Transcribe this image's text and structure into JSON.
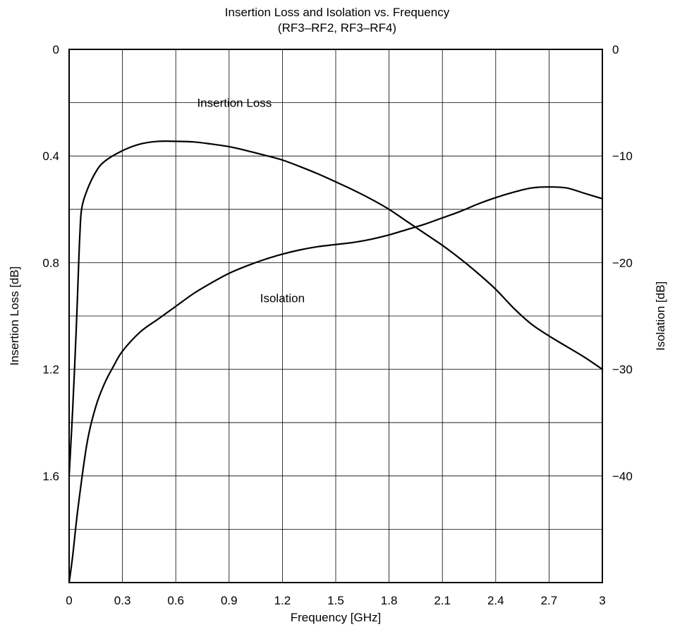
{
  "chart_data": {
    "type": "line",
    "title": "Insertion Loss and Isolation vs. Frequency",
    "subtitle": "(RF3–RF2, RF3–RF4)",
    "xlabel": "Frequency [GHz]",
    "ylabel_left": "Insertion Loss [dB]",
    "ylabel_right": "Isolation [dB]",
    "xlim": [
      0,
      3
    ],
    "ylim_left": [
      0,
      2.0
    ],
    "ylim_right": [
      0,
      -50
    ],
    "left_axis_inverted": true,
    "grid": true,
    "x_ticks": [
      "0",
      "0.3",
      "0.6",
      "0.9",
      "1.2",
      "1.5",
      "1.8",
      "2.1",
      "2.4",
      "2.7",
      "3"
    ],
    "y_left_ticks": [
      "0",
      "0.4",
      "0.8",
      "1.2",
      "1.6"
    ],
    "y_right_ticks": [
      "0",
      "−10",
      "−20",
      "−30",
      "−40"
    ],
    "series": [
      {
        "name": "Insertion Loss",
        "axis": "left",
        "x": [
          0,
          0.02,
          0.04,
          0.055,
          0.06,
          0.07,
          0.1,
          0.15,
          0.2,
          0.3,
          0.4,
          0.5,
          0.6,
          0.7,
          0.8,
          0.9,
          1.0,
          1.1,
          1.2,
          1.3,
          1.4,
          1.5,
          1.6,
          1.7,
          1.8,
          1.9,
          2.0,
          2.1,
          2.2,
          2.3,
          2.4,
          2.5,
          2.6,
          2.7,
          2.8,
          2.9,
          3.0
        ],
        "y": [
          1.6,
          1.35,
          1.05,
          0.78,
          0.7,
          0.6,
          0.53,
          0.46,
          0.42,
          0.38,
          0.355,
          0.345,
          0.345,
          0.347,
          0.355,
          0.365,
          0.38,
          0.397,
          0.415,
          0.44,
          0.467,
          0.497,
          0.528,
          0.562,
          0.6,
          0.645,
          0.69,
          0.735,
          0.785,
          0.84,
          0.9,
          0.97,
          1.03,
          1.075,
          1.115,
          1.155,
          1.2
        ]
      },
      {
        "name": "Isolation",
        "axis": "right",
        "x": [
          0,
          0.02,
          0.05,
          0.1,
          0.15,
          0.2,
          0.25,
          0.3,
          0.4,
          0.5,
          0.6,
          0.7,
          0.8,
          0.9,
          1.0,
          1.1,
          1.2,
          1.3,
          1.4,
          1.5,
          1.6,
          1.7,
          1.8,
          1.9,
          2.0,
          2.1,
          2.2,
          2.3,
          2.4,
          2.5,
          2.6,
          2.7,
          2.8,
          2.9,
          3.0
        ],
        "y": [
          -50,
          -47.5,
          -43,
          -37,
          -33.5,
          -31.3,
          -29.7,
          -28.3,
          -26.5,
          -25.3,
          -24.1,
          -22.9,
          -21.9,
          -21.0,
          -20.3,
          -19.7,
          -19.2,
          -18.8,
          -18.5,
          -18.3,
          -18.1,
          -17.8,
          -17.4,
          -16.9,
          -16.4,
          -15.8,
          -15.2,
          -14.5,
          -13.9,
          -13.4,
          -13.0,
          -12.9,
          -13.0,
          -13.5,
          -14.0
        ]
      }
    ],
    "annotations": [
      {
        "text": "Insertion Loss",
        "x": 0.93,
        "axis": "left",
        "y": 0.2
      },
      {
        "text": "Isolation",
        "x": 1.2,
        "axis": "right",
        "y": -23.3
      }
    ]
  }
}
